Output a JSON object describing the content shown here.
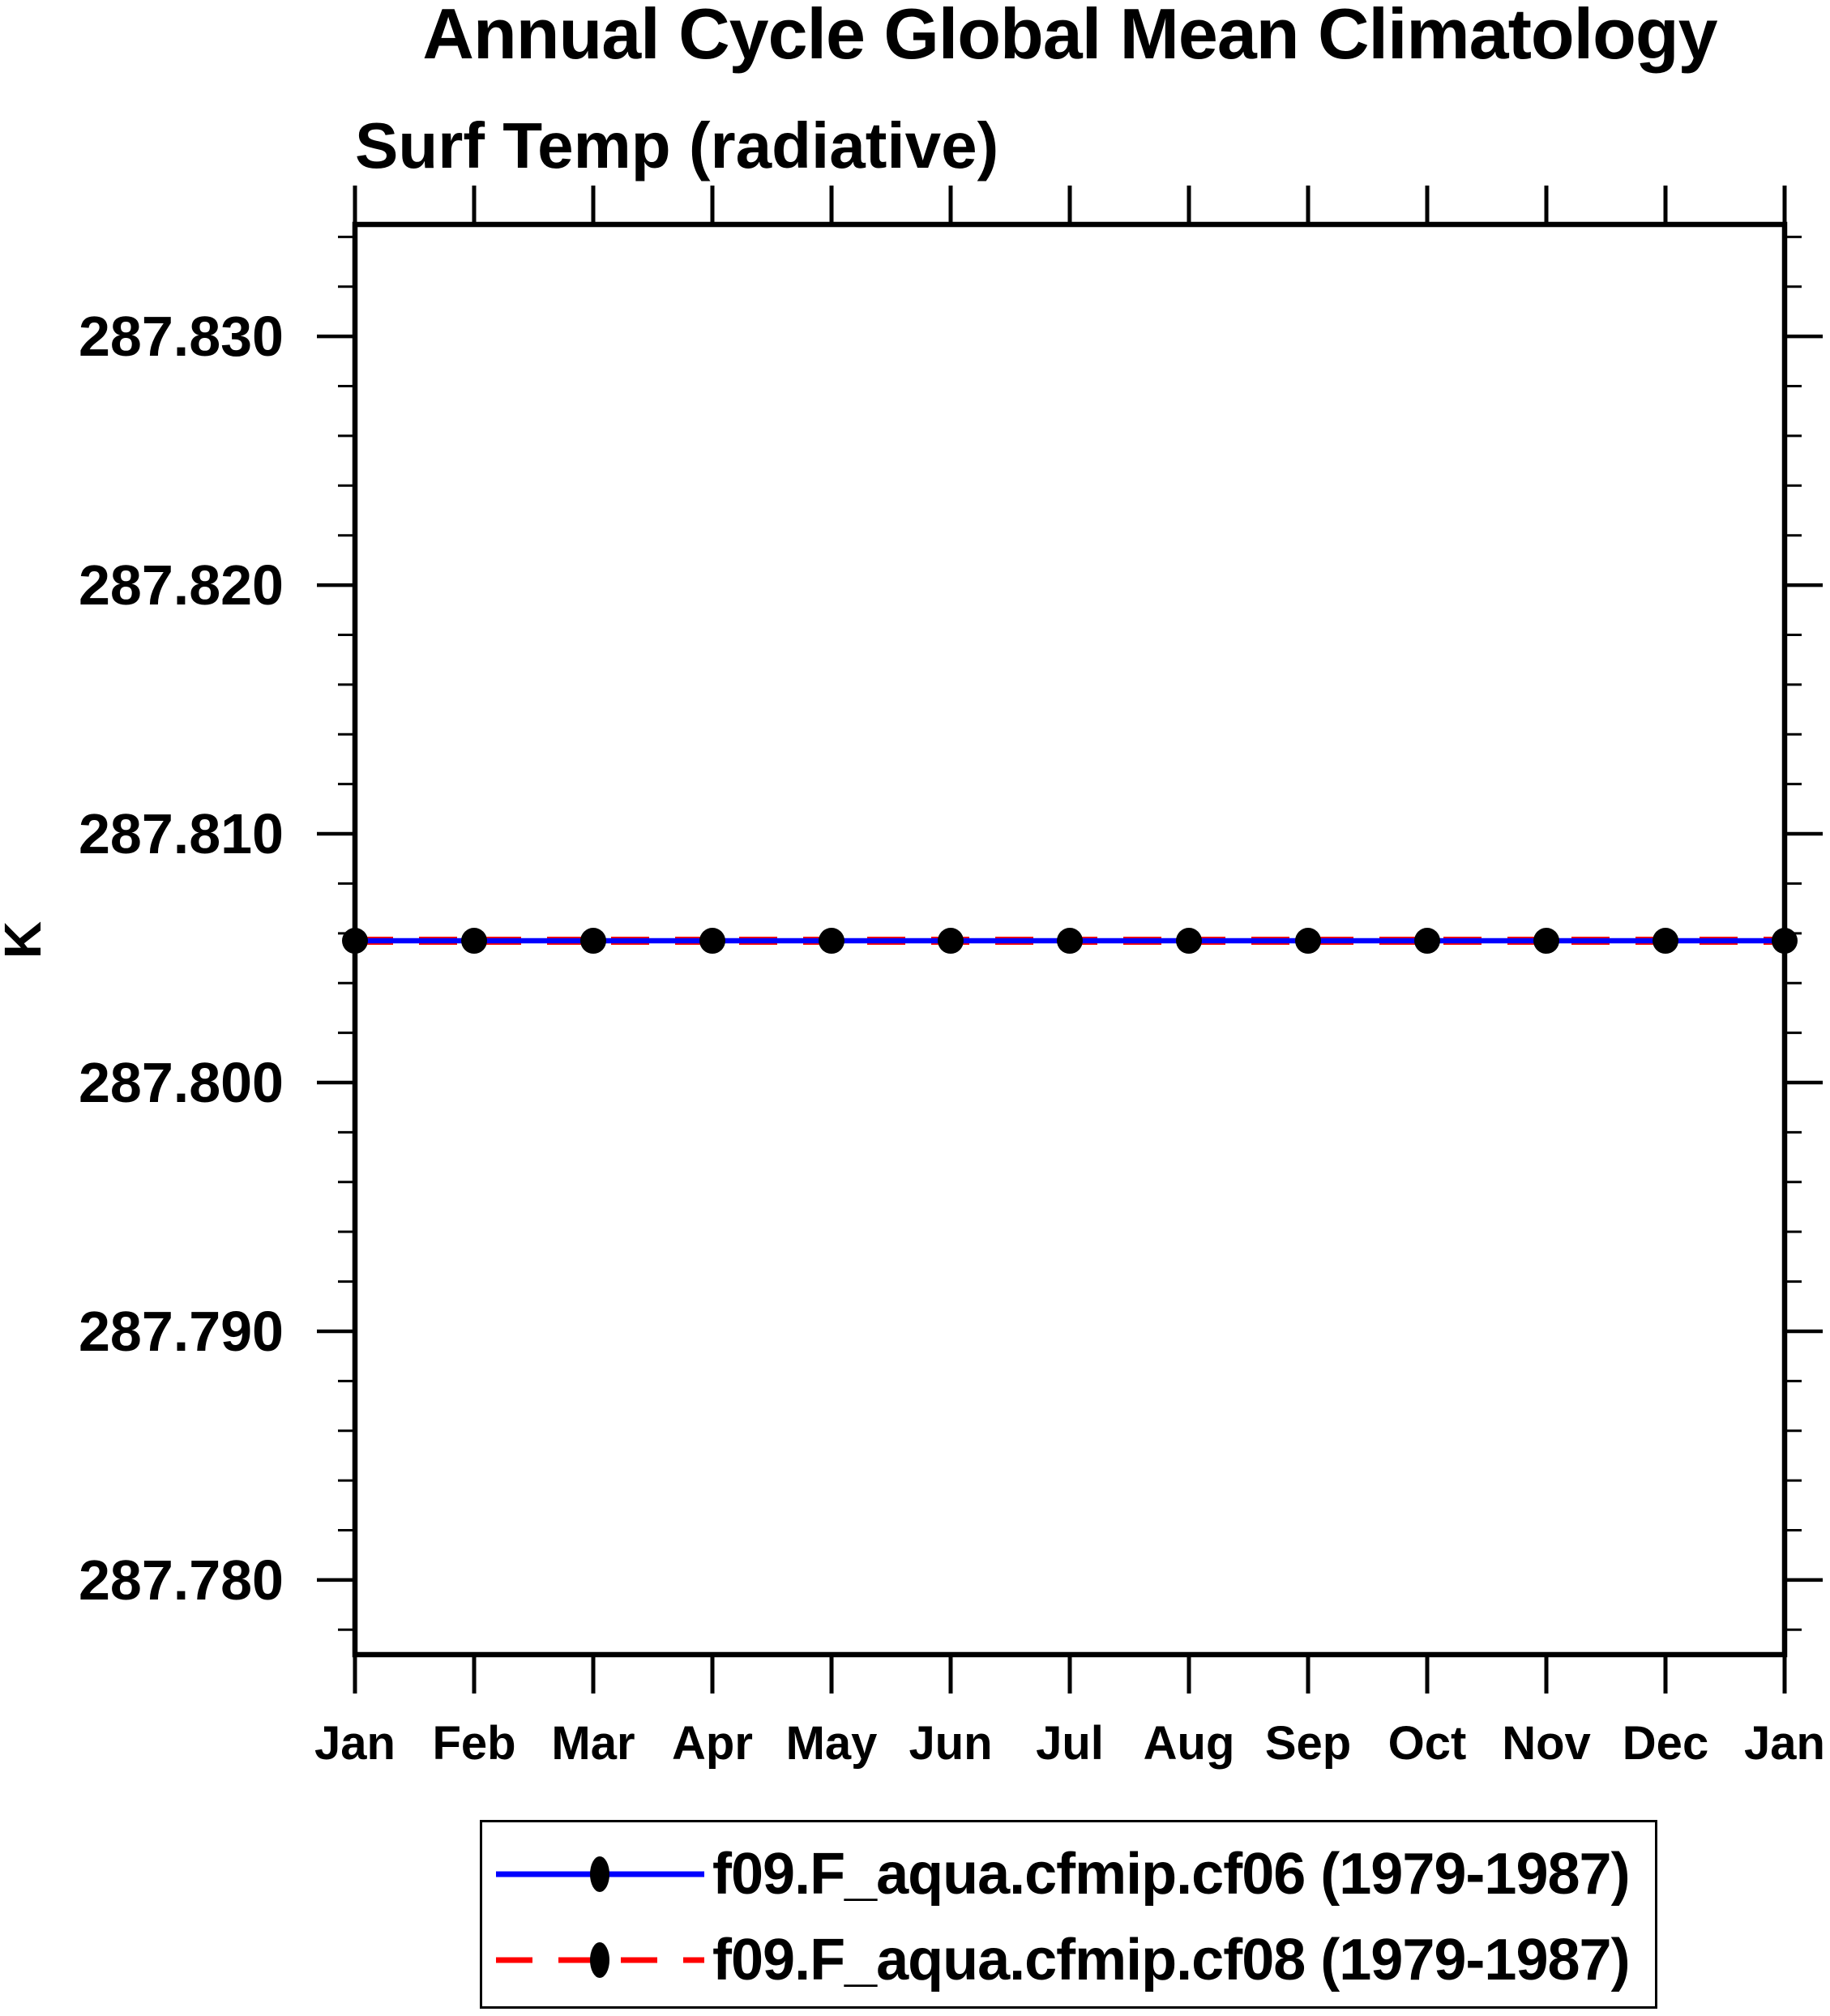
{
  "chart_data": {
    "type": "line",
    "title": "Annual Cycle Global Mean Climatology",
    "subtitle": "Surf Temp (radiative)",
    "ylabel": "K",
    "x_categories": [
      "Jan",
      "Feb",
      "Mar",
      "Apr",
      "May",
      "Jun",
      "Jul",
      "Aug",
      "Sep",
      "Oct",
      "Nov",
      "Dec",
      "Jan"
    ],
    "series": [
      {
        "name": "f09.F_aqua.cfmip.cf06 (1979-1987)",
        "color": "#0000ff",
        "line_style": "solid",
        "marker": "filled-circle",
        "marker_color": "#000000",
        "values": [
          287.8057,
          287.8057,
          287.8057,
          287.8057,
          287.8057,
          287.8057,
          287.8057,
          287.8057,
          287.8057,
          287.8057,
          287.8057,
          287.8057,
          287.8057
        ]
      },
      {
        "name": "f09.F_aqua.cfmip.cf08 (1979-1987)",
        "color": "#ff0000",
        "line_style": "dashed",
        "marker": "filled-circle",
        "marker_color": "#000000",
        "values": [
          287.8057,
          287.8057,
          287.8057,
          287.8057,
          287.8057,
          287.8057,
          287.8057,
          287.8057,
          287.8057,
          287.8057,
          287.8057,
          287.8057,
          287.8057
        ]
      }
    ],
    "ylim": [
      287.777,
      287.8345
    ],
    "ytick_values": [
      287.78,
      287.79,
      287.8,
      287.81,
      287.82,
      287.83
    ],
    "ytick_labels": [
      "287.780",
      "287.790",
      "287.800",
      "287.810",
      "287.820",
      "287.830"
    ],
    "ytick_minor_step": 0.002,
    "grid": false,
    "legend_position": "bottom-center",
    "axis_color": "#000000",
    "background_color": "#ffffff"
  }
}
